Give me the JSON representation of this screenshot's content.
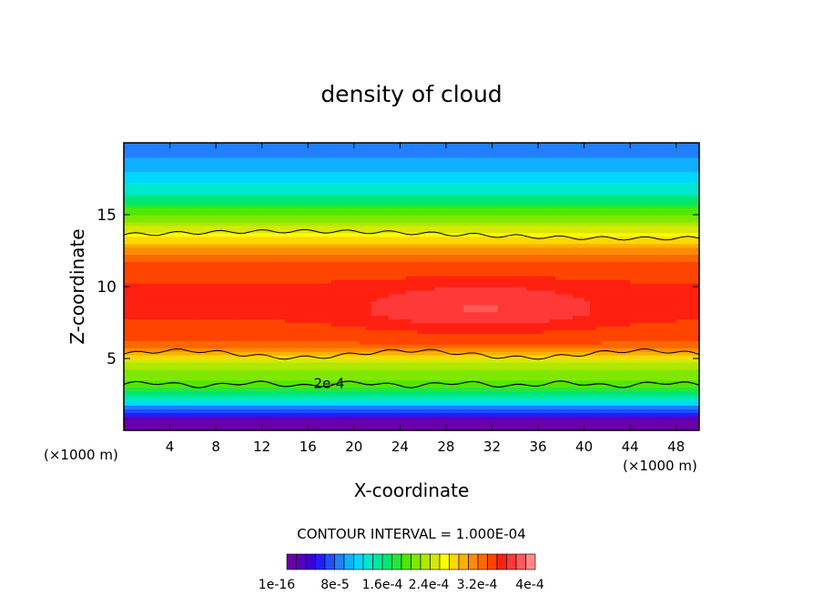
{
  "chart_data": {
    "type": "heatmap",
    "title": "density of cloud",
    "xlabel": "X-coordinate",
    "ylabel": "Z-coordinate",
    "x_unit_left": "(×1000 m)",
    "x_unit_right": "(×1000 m)",
    "xlim": [
      0,
      50
    ],
    "ylim": [
      0,
      20
    ],
    "x_ticks": [
      4,
      8,
      12,
      16,
      20,
      24,
      28,
      32,
      36,
      40,
      44,
      48
    ],
    "y_ticks": [
      5,
      10,
      15
    ],
    "contour_interval_text": "CONTOUR INTERVAL = 1.000E-04",
    "contour_label": "2e-4",
    "colorbar_tick_labels": [
      "1e-16",
      "8e-5",
      "1.6e-4",
      "2.4e-4",
      "3.2e-4",
      "4e-4"
    ],
    "colorbar_colors": [
      "#6a00a8",
      "#5500c0",
      "#3a00d8",
      "#2020ff",
      "#2050ff",
      "#2080ff",
      "#10b0ff",
      "#00d8ff",
      "#00e8d0",
      "#00e8a0",
      "#00e870",
      "#20e840",
      "#50e800",
      "#80e800",
      "#b0e800",
      "#d8e800",
      "#ffff00",
      "#ffd800",
      "#ffb000",
      "#ff8c00",
      "#ff6800",
      "#ff4400",
      "#ff2010",
      "#ff3838",
      "#ff5a5a",
      "#ff8888"
    ],
    "profile_z": [
      0.5,
      1.0,
      1.5,
      2.0,
      2.5,
      3.0,
      3.5,
      4.0,
      4.5,
      5.0,
      5.5,
      6.0,
      7.0,
      8.0,
      9.0,
      10.0,
      11.0,
      12.0,
      12.5,
      13.0,
      13.5,
      14.0,
      14.5,
      15.0,
      15.5,
      16.0,
      16.5,
      17.0,
      17.5,
      18.0,
      18.5,
      19.0,
      20.0
    ],
    "profile_density": [
      0.0,
      4e-05,
      8e-05,
      0.00012,
      0.00016,
      0.00019,
      0.0002,
      0.00021,
      0.00022,
      0.00025,
      0.0003,
      0.00032,
      0.00033,
      0.00034,
      0.00034,
      0.00034,
      0.00033,
      0.00032,
      0.0003,
      0.00028,
      0.00026,
      0.00024,
      0.00022,
      0.0002,
      0.00018,
      0.00016,
      0.00014,
      0.00013,
      0.00012,
      0.00011,
      0.0001,
      9e-05,
      8e-05
    ]
  }
}
